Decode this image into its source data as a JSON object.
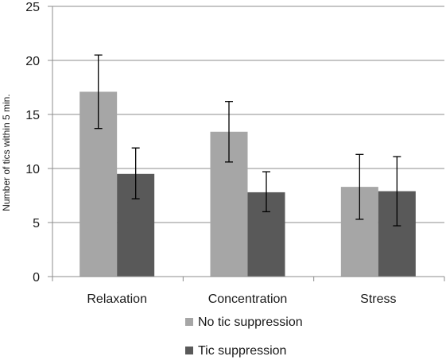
{
  "chart_data": {
    "type": "bar",
    "categories": [
      "Relaxation",
      "Concentration",
      "Stress"
    ],
    "series": [
      {
        "name": "No tic suppression",
        "color": "#a6a6a6",
        "values": [
          17.1,
          13.4,
          8.3
        ],
        "error_low": [
          13.7,
          10.6,
          5.3
        ],
        "error_high": [
          20.5,
          16.2,
          11.3
        ]
      },
      {
        "name": "Tic suppression",
        "color": "#595959",
        "values": [
          9.5,
          7.8,
          7.9
        ],
        "error_low": [
          7.2,
          6.0,
          4.7
        ],
        "error_high": [
          11.9,
          9.7,
          11.1
        ]
      }
    ],
    "ylabel": "Number of tics within 5 min.",
    "xlabel": "",
    "ylim": [
      0,
      25
    ],
    "yticks": [
      "0",
      "5",
      "10",
      "15",
      "20",
      "25"
    ],
    "grid": true,
    "legend_position": "bottom"
  }
}
